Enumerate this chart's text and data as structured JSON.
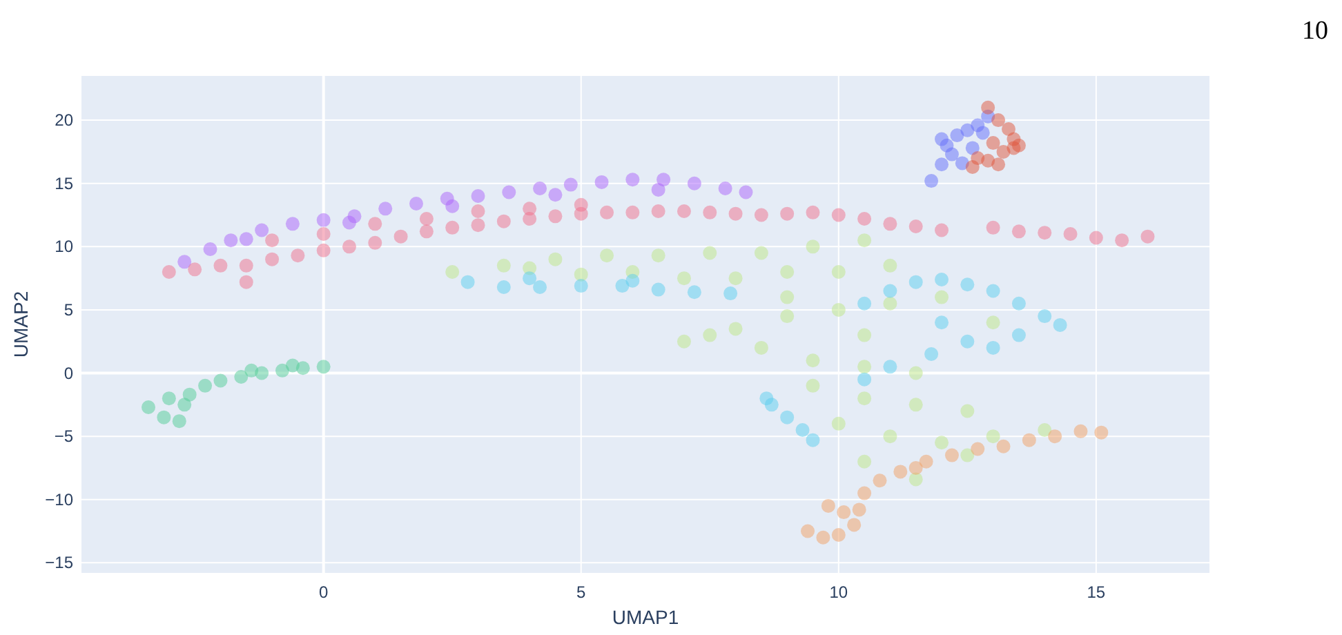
{
  "chart_data": {
    "type": "scatter",
    "xlabel": "UMAP1",
    "ylabel": "UMAP2",
    "annotations": [
      "10"
    ],
    "xlim": [
      -4.7,
      17.2
    ],
    "ylim": [
      -15.8,
      23.5
    ],
    "xticks": [
      0,
      5,
      10,
      15
    ],
    "yticks": [
      {
        "value": -15,
        "label": "−15"
      },
      {
        "value": -10,
        "label": "−10"
      },
      {
        "value": -5,
        "label": "−5"
      },
      0,
      5,
      10,
      15,
      20
    ],
    "grid": true,
    "marker": "circle",
    "series": [
      {
        "color": "#ab63fa",
        "x": [
          -2.7,
          -2.2,
          -1.8,
          -1.2,
          -0.6,
          0,
          0.6,
          1.2,
          1.8,
          2.4,
          3,
          3.6,
          4.2,
          4.8,
          5.4,
          6,
          6.6,
          7.2,
          7.8,
          8.2,
          -1.5,
          0.5,
          2.5,
          4.5,
          6.5
        ],
        "values": [
          8.8,
          9.8,
          10.5,
          11.3,
          11.8,
          12.1,
          12.4,
          13,
          13.4,
          13.8,
          14,
          14.3,
          14.6,
          14.9,
          15.1,
          15.3,
          15.3,
          15,
          14.6,
          14.3,
          10.6,
          11.9,
          13.2,
          14.1,
          14.5
        ]
      },
      {
        "color": "#f06f8c",
        "x": [
          -3,
          -2.5,
          -2,
          -1.5,
          -1,
          -0.5,
          0,
          0.5,
          1,
          1.5,
          2,
          2.5,
          3,
          3.5,
          4,
          4.5,
          5,
          5.5,
          6,
          6.5,
          7,
          7.5,
          8,
          8.5,
          9,
          9.5,
          10,
          10.5,
          11,
          11.5,
          12,
          13,
          13.5,
          14,
          14.5,
          15,
          15.5,
          16,
          -1.5,
          -1,
          0,
          1,
          2,
          3,
          4,
          5
        ],
        "values": [
          8,
          8.2,
          8.5,
          8.5,
          9,
          9.3,
          9.7,
          10,
          10.3,
          10.8,
          11.2,
          11.5,
          11.7,
          12,
          12.2,
          12.4,
          12.6,
          12.7,
          12.7,
          12.8,
          12.8,
          12.7,
          12.6,
          12.5,
          12.6,
          12.7,
          12.5,
          12.2,
          11.8,
          11.6,
          11.3,
          11.5,
          11.2,
          11.1,
          11,
          10.7,
          10.5,
          10.8,
          7.2,
          10.5,
          11,
          11.8,
          12.2,
          12.8,
          13,
          13.3
        ]
      },
      {
        "color": "#636efa",
        "x": [
          11.8,
          12,
          12.1,
          12.3,
          12.5,
          12.7,
          12.9,
          12.2,
          12.4,
          12.6,
          12,
          12.8
        ],
        "values": [
          15.2,
          16.5,
          18,
          18.8,
          19.2,
          19.6,
          20.3,
          17.3,
          16.6,
          17.8,
          18.5,
          19
        ]
      },
      {
        "color": "#e0553b",
        "x": [
          12.9,
          13.1,
          13.3,
          13.4,
          13.2,
          12.9,
          12.6,
          13.4,
          13,
          12.7,
          13.5,
          13.1
        ],
        "values": [
          21,
          20,
          19.3,
          18.5,
          17.5,
          16.8,
          16.3,
          17.8,
          18.2,
          17,
          18,
          16.5
        ]
      },
      {
        "color": "#bde585",
        "x": [
          2.5,
          3.5,
          4.5,
          5.5,
          6.5,
          7.5,
          8.5,
          9.5,
          10.5,
          6,
          7,
          8,
          9,
          10,
          11,
          7,
          8,
          9,
          10,
          11,
          12,
          13,
          7.5,
          8.5,
          9.5,
          10.5,
          11.5,
          9.5,
          10.5,
          11.5,
          12.5,
          10,
          11,
          12,
          13,
          14,
          10.5,
          11.5,
          12.5,
          4,
          5,
          9,
          10.5
        ],
        "values": [
          8,
          8.5,
          9,
          9.3,
          9.3,
          9.5,
          9.5,
          10,
          10.5,
          8,
          7.5,
          7.5,
          8,
          8,
          8.5,
          2.5,
          3.5,
          4.5,
          5,
          5.5,
          6,
          4,
          3,
          2,
          1,
          0.5,
          0,
          -1,
          -2,
          -2.5,
          -3,
          -4,
          -5,
          -5.5,
          -5,
          -4.5,
          -7,
          -8.4,
          -6.5,
          8.3,
          7.8,
          6,
          3
        ]
      },
      {
        "color": "#5bcdee",
        "x": [
          2.8,
          3.5,
          4.2,
          5,
          5.8,
          6.5,
          7.2,
          7.9,
          4,
          6,
          10.5,
          11,
          11.5,
          12,
          12.5,
          13,
          13.5,
          14,
          14.3,
          13.5,
          12.5,
          11.8,
          11,
          10.5,
          12,
          13,
          8.7,
          9,
          9.3,
          9.5,
          8.6
        ],
        "values": [
          7.2,
          6.8,
          6.8,
          6.9,
          6.9,
          6.6,
          6.4,
          6.3,
          7.5,
          7.3,
          5.5,
          6.5,
          7.2,
          7.4,
          7,
          6.5,
          5.5,
          4.5,
          3.8,
          3,
          2.5,
          1.5,
          0.5,
          -0.5,
          4,
          2,
          -2.5,
          -3.5,
          -4.5,
          -5.3,
          -2
        ]
      },
      {
        "color": "#f2a064",
        "x": [
          9.4,
          9.7,
          10,
          10.3,
          10.1,
          9.8,
          10.5,
          10.8,
          11.2,
          11.7,
          12.2,
          12.7,
          13.2,
          13.7,
          14.2,
          14.7,
          15.1,
          11.5,
          10.4
        ],
        "values": [
          -12.5,
          -13,
          -12.8,
          -12,
          -11,
          -10.5,
          -9.5,
          -8.5,
          -7.8,
          -7,
          -6.5,
          -6,
          -5.8,
          -5.3,
          -5,
          -4.6,
          -4.7,
          -7.5,
          -10.8
        ]
      },
      {
        "color": "#52cc96",
        "x": [
          -3.4,
          -3.1,
          -2.8,
          -2.7,
          -3,
          -2.6,
          -2.3,
          -2,
          -1.6,
          -1.2,
          -0.8,
          -0.4,
          0,
          -1.4,
          -0.6
        ],
        "values": [
          -2.7,
          -3.5,
          -3.8,
          -2.5,
          -2,
          -1.7,
          -1,
          -0.6,
          -0.3,
          0,
          0.2,
          0.4,
          0.5,
          0.2,
          0.6
        ]
      }
    ]
  }
}
